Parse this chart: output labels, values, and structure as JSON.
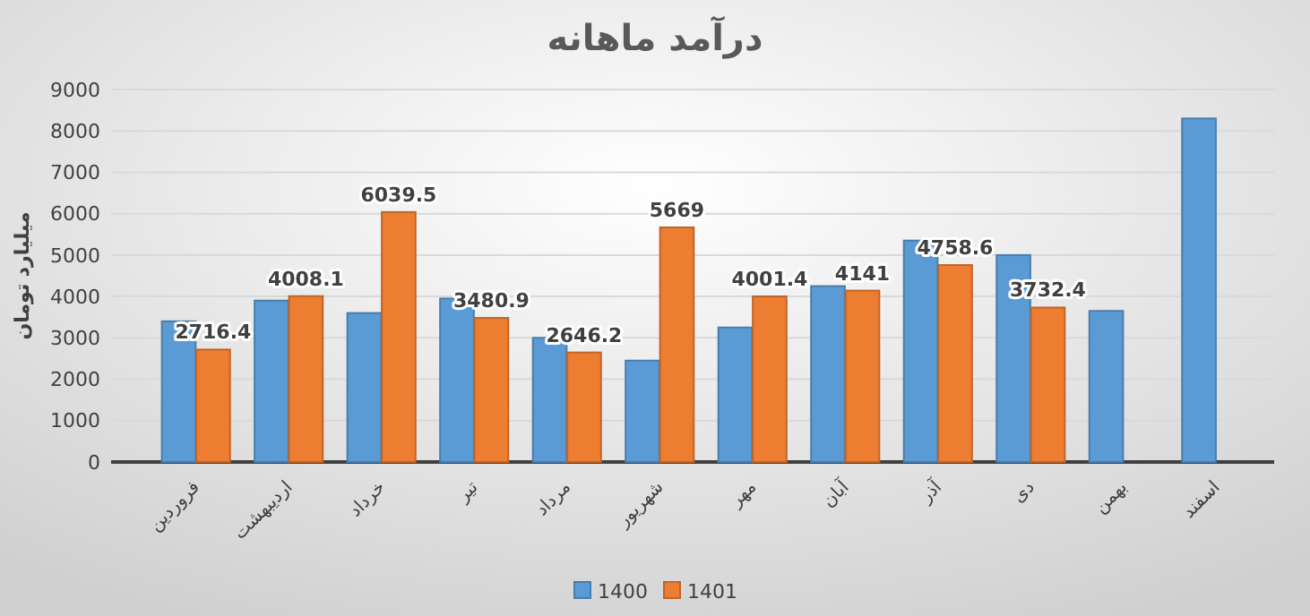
{
  "chart_data": {
    "type": "bar",
    "title": "درآمد ماهانه",
    "ylabel": "میلیارد تومان",
    "categories": [
      "فروردین",
      "اردیبهشت",
      "خرداد",
      "تیر",
      "مرداد",
      "شهریور",
      "مهر",
      "آبان",
      "آذر",
      "دی",
      "بهمن",
      "اسفند"
    ],
    "series": [
      {
        "name": "1400",
        "color": "#5b9bd5",
        "values": [
          3400,
          3900,
          3600,
          3950,
          3000,
          2450,
          3250,
          4250,
          5350,
          5000,
          3650,
          8300
        ]
      },
      {
        "name": "1401",
        "color": "#ed7d31",
        "values": [
          2716.4,
          4008.1,
          6039.5,
          3480.9,
          2646.2,
          5669,
          4001.4,
          4141,
          4758.6,
          3732.4,
          null,
          null
        ],
        "value_labels": [
          "2716.4",
          "4008.1",
          "6039.5",
          "3480.9",
          "2646.2",
          "5669",
          "4001.4",
          "4141",
          "4758.6",
          "3732.4",
          null,
          null
        ]
      }
    ],
    "ylim": [
      0,
      9000
    ],
    "yticks": [
      0,
      1000,
      2000,
      3000,
      4000,
      5000,
      6000,
      7000,
      8000,
      9000
    ],
    "grid": "y",
    "legend": "bottom"
  }
}
